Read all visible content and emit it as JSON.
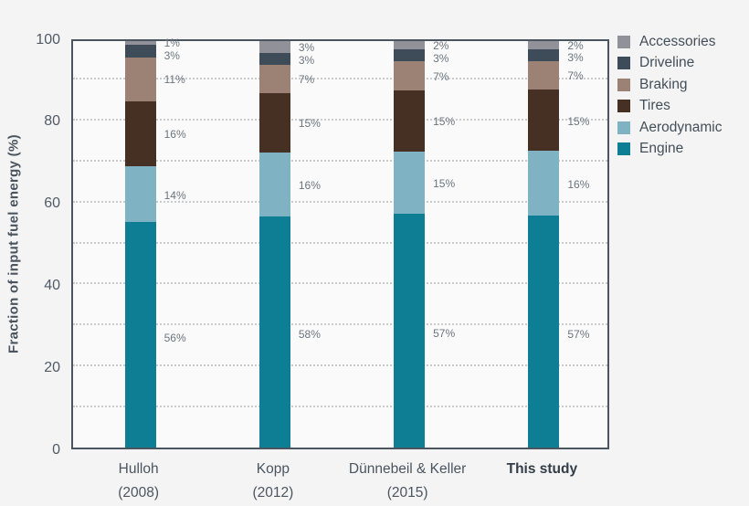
{
  "figure": {
    "background": "#f4f4f5",
    "plot_background": "#fafafa",
    "border_color": "#4b555f",
    "grid_color": "#c9cbcd",
    "tick_text_color": "#515b65",
    "percent_label_color": "#6b757e",
    "legend_text_color": "#434e58"
  },
  "chart_data": {
    "type": "bar",
    "stacked": true,
    "title": "",
    "xlabel": "",
    "ylabel": "Fraction of input fuel energy (%)",
    "ylim": [
      0,
      100
    ],
    "yticks": [
      0,
      20,
      40,
      60,
      80,
      100
    ],
    "gridlines": [
      10,
      20,
      30,
      40,
      50,
      60,
      70,
      80,
      90
    ],
    "grid_style": "dotted",
    "legend_position": "right",
    "legend_order_top_to_bottom": [
      "Accessories",
      "Driveline",
      "Braking",
      "Tires",
      "Aerodynamic",
      "Engine"
    ],
    "categories": [
      {
        "lines": [
          "Hulloh",
          "(2008)"
        ],
        "bold": false
      },
      {
        "lines": [
          "Kopp",
          "(2012)"
        ],
        "bold": false
      },
      {
        "lines": [
          "Dünnebeil & Keller",
          "(2015)"
        ],
        "bold": false
      },
      {
        "lines": [
          "This study"
        ],
        "bold": true
      }
    ],
    "series": [
      {
        "name": "Engine",
        "color": "#0e7e95",
        "values": [
          56,
          58,
          57,
          57
        ],
        "labels": [
          "56%",
          "58%",
          "57%",
          "57%"
        ]
      },
      {
        "name": "Aerodynamic",
        "color": "#7fb3c3",
        "values": [
          14,
          16,
          15,
          16
        ],
        "labels": [
          "14%",
          "16%",
          "15%",
          "16%"
        ]
      },
      {
        "name": "Tires",
        "color": "#462f23",
        "values": [
          16,
          15,
          15,
          15
        ],
        "labels": [
          "16%",
          "15%",
          "15%",
          "15%"
        ]
      },
      {
        "name": "Braking",
        "color": "#9b8275",
        "values": [
          11,
          7,
          7,
          7
        ],
        "labels": [
          "11%",
          "7%",
          "7%",
          "7%"
        ]
      },
      {
        "name": "Driveline",
        "color": "#3d4c58",
        "values": [
          3,
          3,
          3,
          3
        ],
        "labels": [
          "3%",
          "3%",
          "3%",
          "3%"
        ]
      },
      {
        "name": "Accessories",
        "color": "#909199",
        "values": [
          1,
          3,
          2,
          2
        ],
        "labels": [
          "1%",
          "3%",
          "2%",
          "2%"
        ]
      }
    ]
  }
}
